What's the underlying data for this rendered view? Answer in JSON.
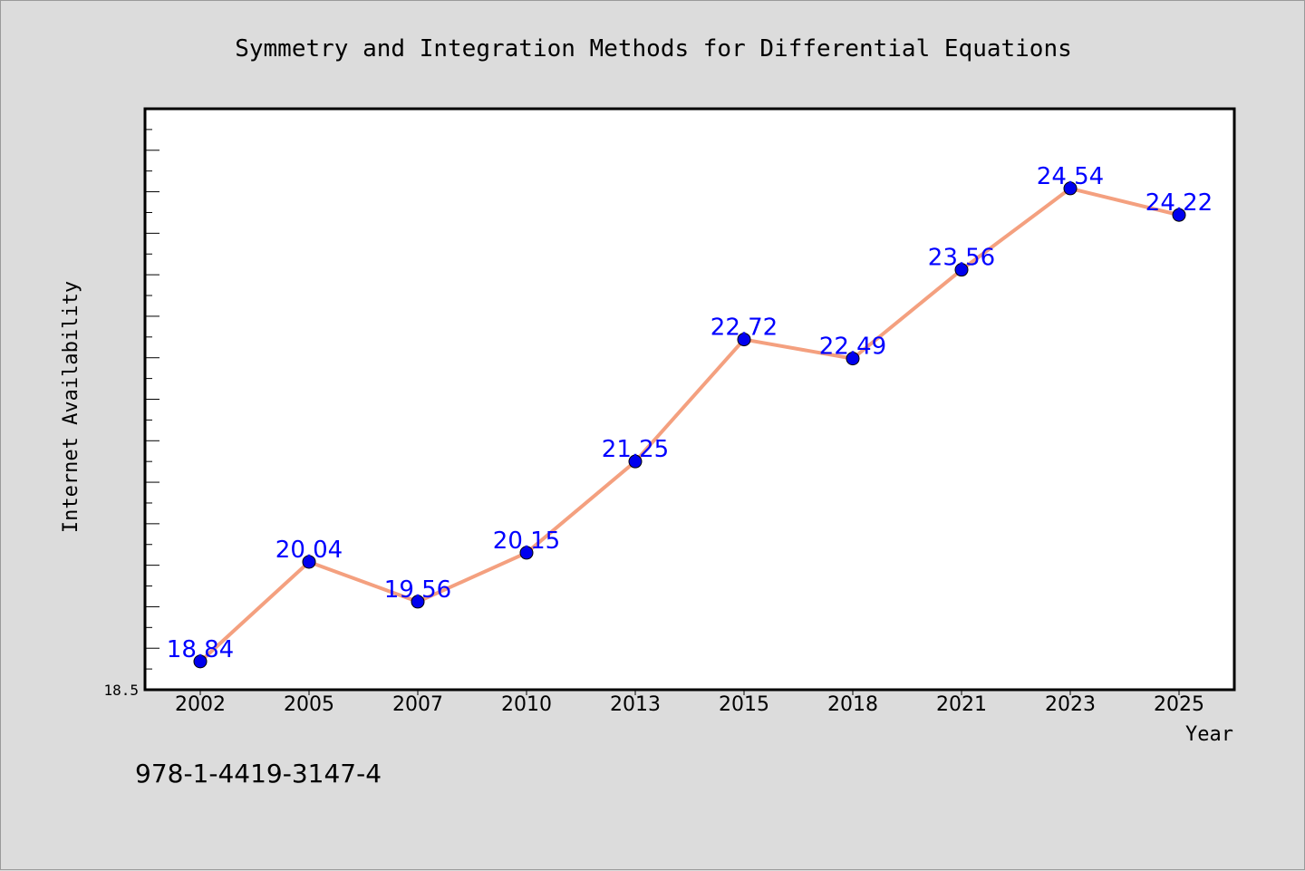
{
  "chart_data": {
    "type": "line",
    "title": "Symmetry and Integration Methods for Differential Equations",
    "xlabel": "Year",
    "ylabel": "Internet Availability",
    "categories": [
      "2002",
      "2005",
      "2007",
      "2010",
      "2013",
      "2015",
      "2018",
      "2021",
      "2023",
      "2025"
    ],
    "series": [
      {
        "values": [
          18.84,
          20.04,
          19.56,
          20.15,
          21.25,
          22.72,
          22.49,
          23.56,
          24.54,
          24.22
        ],
        "line_color": "#f4a07f",
        "marker_color": "#0000ee"
      }
    ],
    "data_labels": [
      "18.84",
      "20.04",
      "19.56",
      "20.15",
      "21.25",
      "22.72",
      "22.49",
      "23.56",
      "24.54",
      "24.22"
    ],
    "data_label_color": "#0000ff",
    "ylim": [
      18.5,
      25.5
    ],
    "yticks_labeled": [
      "18.5"
    ],
    "grid": false,
    "legend": "none"
  },
  "footer": {
    "isbn": "978-1-4419-3147-4"
  }
}
